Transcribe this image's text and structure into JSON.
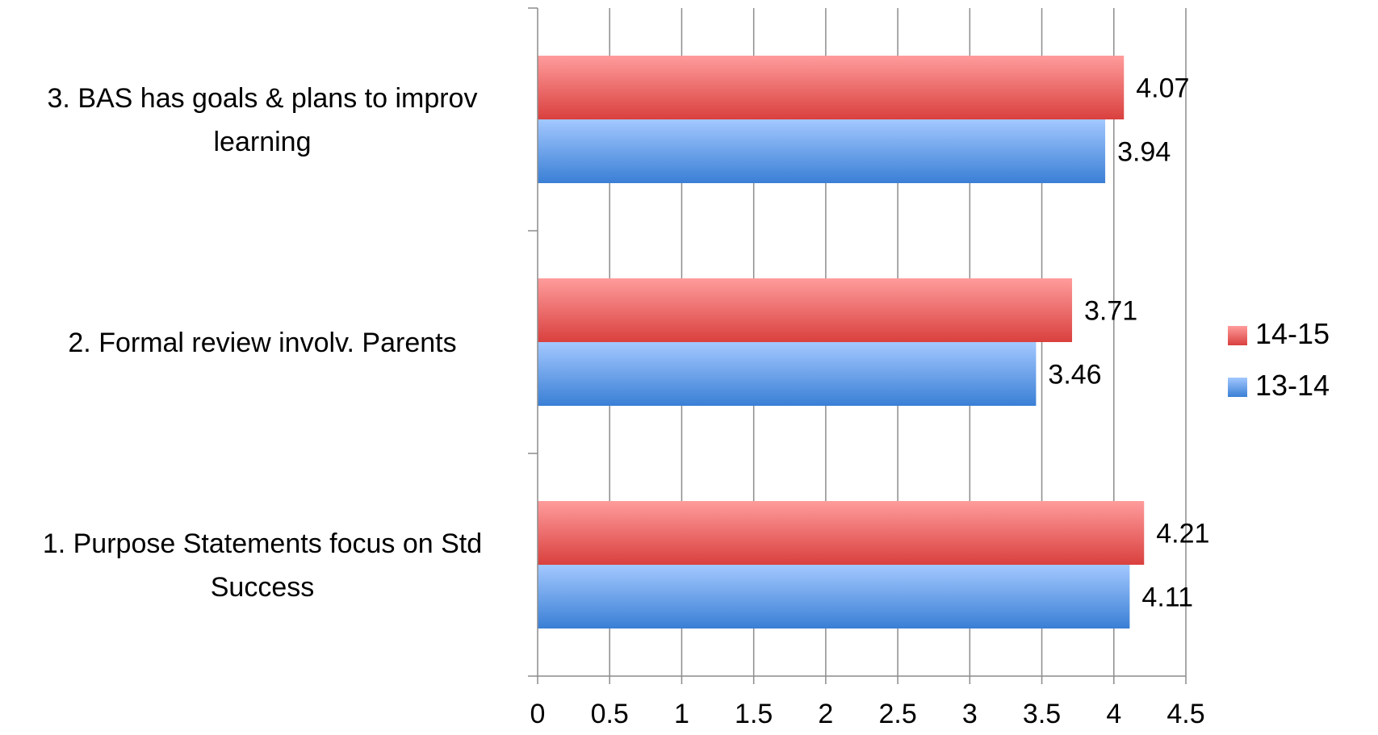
{
  "chart_data": {
    "type": "bar",
    "orientation": "horizontal",
    "categories": [
      "1. Purpose Statements focus on Std Success",
      "2. Formal review involv. Parents",
      "3. BAS has goals & plans to improv learning"
    ],
    "category_label_lines": [
      [
        "1. Purpose Statements focus on Std",
        "Success"
      ],
      [
        "2. Formal review involv. Parents"
      ],
      [
        "3. BAS has goals & plans to improv",
        "learning"
      ]
    ],
    "series": [
      {
        "name": "14-15",
        "values": [
          4.21,
          3.71,
          4.07
        ],
        "color": "#d9403e",
        "color_light": "#ff9c9c"
      },
      {
        "name": "13-14",
        "values": [
          4.11,
          3.46,
          3.94
        ],
        "color": "#3a7fd5",
        "color_light": "#a3c8ff"
      }
    ],
    "value_labels": {
      "14-15": [
        "4.21",
        "3.71",
        "4.07"
      ],
      "13-14": [
        "4.11",
        "3.46",
        "3.94"
      ]
    },
    "xlim": [
      0,
      4.5
    ],
    "x_ticks": [
      "0",
      "0.5",
      "1",
      "1.5",
      "2",
      "2.5",
      "3",
      "3.5",
      "4",
      "4.5"
    ],
    "grid": true,
    "legend_position": "right",
    "title": "",
    "xlabel": "",
    "ylabel": ""
  }
}
